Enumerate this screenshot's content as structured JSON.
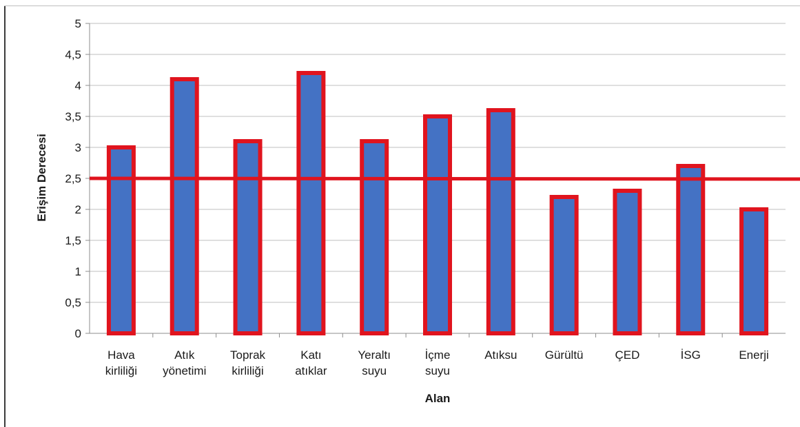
{
  "chart_data": {
    "type": "bar",
    "title": "",
    "xlabel": "Alan",
    "ylabel": "Erişim Derecesi",
    "ylim": [
      0,
      5
    ],
    "yticks": [
      "0",
      "0,5",
      "1",
      "1,5",
      "2",
      "2,5",
      "3",
      "3,5",
      "4",
      "4,5",
      "5"
    ],
    "grid": true,
    "legend": "none",
    "categories": [
      [
        "Hava",
        "kirliliği"
      ],
      [
        "Atık",
        "yönetimi"
      ],
      [
        "Toprak",
        "kirliliği"
      ],
      [
        "Katı",
        "atıklar"
      ],
      [
        "Yeraltı",
        "suyu"
      ],
      [
        "İçme",
        "suyu"
      ],
      [
        "Atıksu"
      ],
      [
        "Gürültü"
      ],
      [
        "ÇED"
      ],
      [
        "İSG"
      ],
      [
        "Enerji"
      ]
    ],
    "values": [
      3.0,
      4.1,
      3.1,
      4.2,
      3.1,
      3.5,
      3.6,
      2.2,
      2.3,
      2.7,
      2.0
    ],
    "reference_line": 2.5,
    "colors": {
      "bar_fill": "#4472c4",
      "bar_border": "#e0141e",
      "reference_line": "#e0141e",
      "grid": "#bfbfbf"
    }
  }
}
